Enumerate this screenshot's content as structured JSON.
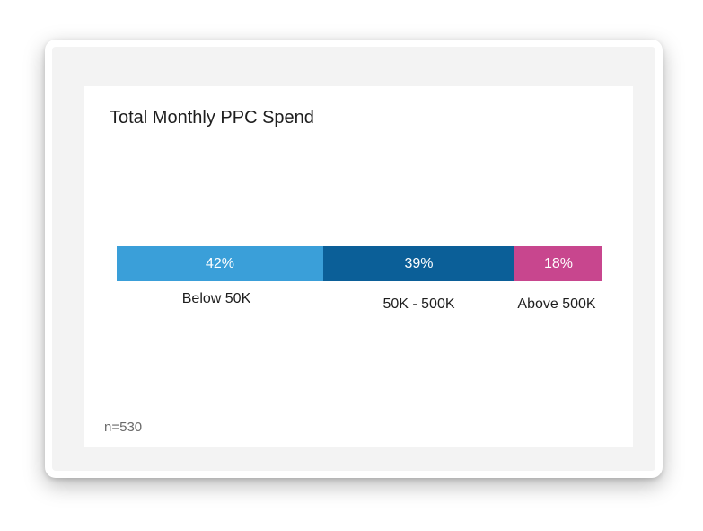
{
  "chart_data": {
    "type": "bar",
    "stacked": true,
    "orientation": "horizontal",
    "title": "Total Monthly PPC Spend",
    "categories": [
      "Below 50K",
      "50K - 500K",
      "Above 500K"
    ],
    "values": [
      42,
      39,
      18
    ],
    "value_labels": [
      "42%",
      "39%",
      "18%"
    ],
    "colors": [
      "#3a9fd9",
      "#0b5f98",
      "#c8468e"
    ],
    "note": "n=530"
  }
}
